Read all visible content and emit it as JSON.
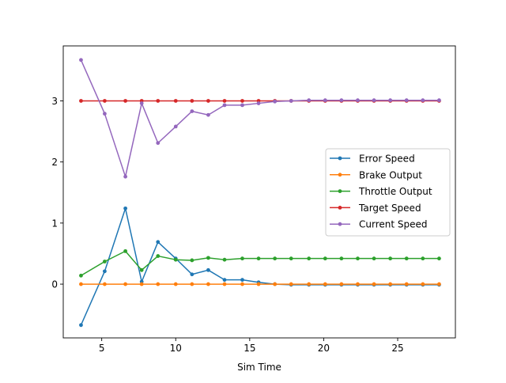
{
  "chart_data": {
    "type": "line",
    "title": "",
    "xlabel": "Sim Time",
    "ylabel": "",
    "xlim": [
      2.4,
      28.9
    ],
    "ylim": [
      -0.88,
      3.9
    ],
    "xticks": [
      5,
      10,
      15,
      20,
      25
    ],
    "yticks": [
      0,
      1,
      2,
      3
    ],
    "grid": false,
    "legend_position": "center-right",
    "x": [
      3.6,
      5.2,
      6.6,
      7.7,
      8.8,
      10.0,
      11.1,
      12.2,
      13.3,
      14.5,
      15.6,
      16.7,
      17.8,
      19.0,
      20.1,
      21.2,
      22.3,
      23.4,
      24.5,
      25.6,
      26.7,
      27.8
    ],
    "series": [
      {
        "name": "Error Speed",
        "color": "#1f77b4",
        "values": [
          -0.67,
          0.21,
          1.24,
          0.04,
          0.69,
          0.42,
          0.16,
          0.23,
          0.07,
          0.07,
          0.03,
          0.0,
          -0.01,
          -0.01,
          -0.01,
          -0.01,
          -0.01,
          -0.01,
          -0.01,
          -0.01,
          -0.01,
          -0.01
        ]
      },
      {
        "name": "Brake Output",
        "color": "#ff7f0e",
        "values": [
          0,
          0,
          0,
          0,
          0,
          0,
          0,
          0,
          0,
          0,
          0,
          0,
          0,
          0,
          0,
          0,
          0,
          0,
          0,
          0,
          0,
          0
        ]
      },
      {
        "name": "Throttle Output",
        "color": "#2ca02c",
        "values": [
          0.14,
          0.37,
          0.54,
          0.23,
          0.46,
          0.4,
          0.39,
          0.43,
          0.4,
          0.42,
          0.42,
          0.42,
          0.42,
          0.42,
          0.42,
          0.42,
          0.42,
          0.42,
          0.42,
          0.42,
          0.42,
          0.42
        ]
      },
      {
        "name": "Target Speed",
        "color": "#d62728",
        "values": [
          3.0,
          3.0,
          3.0,
          3.0,
          3.0,
          3.0,
          3.0,
          3.0,
          3.0,
          3.0,
          3.0,
          3.0,
          3.0,
          3.0,
          3.0,
          3.0,
          3.0,
          3.0,
          3.0,
          3.0,
          3.0,
          3.0
        ]
      },
      {
        "name": "Current Speed",
        "color": "#9467bd",
        "values": [
          3.67,
          2.79,
          1.76,
          2.96,
          2.31,
          2.58,
          2.83,
          2.77,
          2.93,
          2.93,
          2.96,
          2.99,
          3.0,
          3.01,
          3.01,
          3.01,
          3.01,
          3.01,
          3.01,
          3.01,
          3.01,
          3.01
        ]
      }
    ]
  }
}
